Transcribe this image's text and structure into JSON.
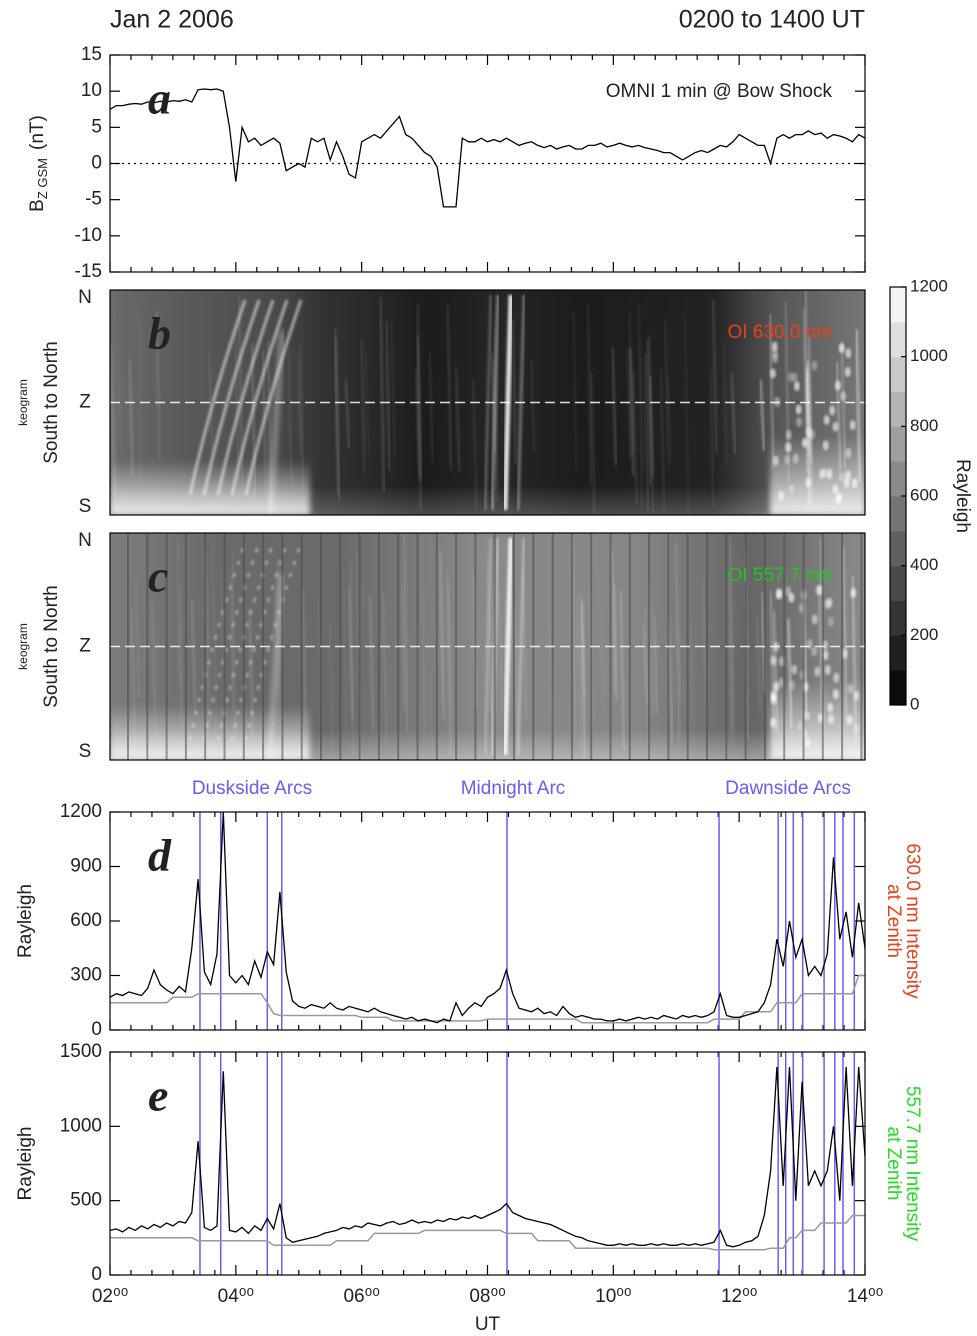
{
  "header": {
    "date": "Jan 2 2006",
    "range": "0200 to 1400 UT"
  },
  "chart_data": [
    {
      "type": "line",
      "panel_label": "a",
      "annotation": "OMNI 1 min @ Bow Shock",
      "ylabel": {
        "main": "B",
        "sub": "Z GSM",
        "unit": "(nT)"
      },
      "xlim": [
        2,
        14
      ],
      "xticks": [
        2,
        4,
        6,
        8,
        10,
        12,
        14
      ],
      "ylim": [
        -15,
        15
      ],
      "yticks": [
        -15,
        -10,
        -5,
        0,
        5,
        10,
        15
      ],
      "x": [
        2.0,
        2.1,
        2.2,
        2.3,
        2.4,
        2.5,
        2.6,
        2.7,
        2.8,
        2.9,
        3.0,
        3.1,
        3.2,
        3.3,
        3.4,
        3.5,
        3.6,
        3.7,
        3.8,
        3.9,
        4.0,
        4.1,
        4.2,
        4.3,
        4.4,
        4.5,
        4.6,
        4.7,
        4.8,
        4.9,
        5.0,
        5.1,
        5.2,
        5.3,
        5.4,
        5.5,
        5.6,
        5.7,
        5.8,
        5.9,
        6.0,
        6.1,
        6.2,
        6.3,
        6.4,
        6.5,
        6.6,
        6.7,
        6.8,
        6.9,
        7.0,
        7.1,
        7.2,
        7.3,
        7.4,
        7.5,
        7.6,
        7.7,
        7.8,
        7.9,
        8.0,
        8.1,
        8.2,
        8.3,
        8.4,
        8.5,
        8.6,
        8.7,
        8.8,
        8.9,
        9.0,
        9.1,
        9.2,
        9.3,
        9.4,
        9.5,
        9.6,
        9.7,
        9.8,
        9.9,
        10.0,
        10.1,
        10.2,
        10.3,
        10.4,
        10.5,
        10.6,
        10.7,
        10.8,
        10.9,
        11.0,
        11.1,
        11.2,
        11.3,
        11.4,
        11.5,
        11.6,
        11.7,
        11.8,
        11.9,
        12.0,
        12.1,
        12.2,
        12.3,
        12.4,
        12.5,
        12.6,
        12.7,
        12.8,
        12.9,
        13.0,
        13.1,
        13.2,
        13.3,
        13.4,
        13.5,
        13.6,
        13.7,
        13.8,
        13.9,
        14.0
      ],
      "series": [
        {
          "color": "#000000",
          "values": [
            7.5,
            8,
            8,
            8.2,
            8.3,
            8.2,
            8.5,
            8.4,
            8.6,
            8.5,
            8.7,
            8.6,
            8.8,
            8.5,
            10.2,
            10.3,
            10.2,
            10.3,
            10,
            5,
            -2.5,
            5,
            3,
            3.5,
            2.5,
            3,
            3.5,
            2.8,
            -1,
            -0.5,
            0,
            -0.5,
            3.5,
            3,
            3.5,
            0.5,
            3,
            1,
            -1.5,
            -2,
            3,
            3.5,
            4,
            3.5,
            4.5,
            5.5,
            6.5,
            4,
            3.5,
            2.5,
            1.5,
            1,
            -0.5,
            -6,
            -6,
            -6,
            3.5,
            3,
            3,
            3.5,
            3,
            3.3,
            3,
            3.5,
            3,
            2.5,
            2.8,
            3,
            2.5,
            2.2,
            2.5,
            2,
            2.3,
            2.5,
            2,
            2,
            2.5,
            2.5,
            2.8,
            2.3,
            2.5,
            2.8,
            2.5,
            2.3,
            2.5,
            2.2,
            2,
            1.8,
            1.5,
            1.5,
            1,
            0.5,
            1,
            1.5,
            1.8,
            1.5,
            2,
            2.5,
            2.3,
            3,
            4,
            3.5,
            3,
            2.5,
            2.5,
            0,
            3.5,
            4,
            3.5,
            4,
            4,
            4.5,
            4,
            4.2,
            3.5,
            4,
            3.8,
            3.5,
            3,
            4,
            3.5
          ]
        }
      ]
    },
    {
      "type": "keogram",
      "panel_label": "b",
      "title": "OI 630.0 nm",
      "title_color": "#e8401c",
      "ylabel": "South to North",
      "ylabel_note": "keogram",
      "ytick_labels": [
        "N",
        "Z",
        "S"
      ],
      "colorbar": {
        "label": "Rayleigh",
        "lim": [
          0,
          1200
        ],
        "ticks": [
          0,
          200,
          400,
          600,
          800,
          1000,
          1200
        ]
      }
    },
    {
      "type": "keogram",
      "panel_label": "c",
      "title": "OI 557.7 nm",
      "title_color": "#22c522",
      "ylabel": "South to North",
      "ylabel_note": "keogram",
      "ytick_labels": [
        "N",
        "Z",
        "S"
      ]
    },
    {
      "type": "line",
      "panel_label": "d",
      "ylabel": "Rayleigh",
      "side_label": [
        "630.0 nm Intensity",
        "at Zenith"
      ],
      "side_color": "#e8401c",
      "annotations": [
        "Duskside Arcs",
        "Midnight Arc",
        "Dawnside Arcs"
      ],
      "event_color": "#6a5cf0",
      "event_times": [
        3.43,
        3.76,
        4.5,
        4.73,
        8.31,
        11.68,
        12.62,
        12.74,
        12.86,
        13.01,
        13.35,
        13.52,
        13.65,
        13.83
      ],
      "xlim": [
        2,
        14
      ],
      "xticks": [
        2,
        4,
        6,
        8,
        10,
        12,
        14
      ],
      "ylim": [
        0,
        1200
      ],
      "yticks": [
        0,
        300,
        600,
        900,
        1200
      ],
      "x": [
        2.0,
        2.1,
        2.2,
        2.3,
        2.4,
        2.5,
        2.6,
        2.7,
        2.8,
        2.9,
        3.0,
        3.1,
        3.2,
        3.3,
        3.4,
        3.5,
        3.6,
        3.7,
        3.8,
        3.9,
        4.0,
        4.1,
        4.2,
        4.3,
        4.4,
        4.5,
        4.6,
        4.7,
        4.8,
        4.9,
        5.0,
        5.1,
        5.2,
        5.3,
        5.4,
        5.5,
        5.6,
        5.7,
        5.8,
        5.9,
        6.0,
        6.1,
        6.2,
        6.3,
        6.4,
        6.5,
        6.6,
        6.7,
        6.8,
        6.9,
        7.0,
        7.1,
        7.2,
        7.3,
        7.4,
        7.5,
        7.6,
        7.7,
        7.8,
        7.9,
        8.0,
        8.1,
        8.2,
        8.3,
        8.4,
        8.5,
        8.6,
        8.7,
        8.8,
        8.9,
        9.0,
        9.1,
        9.2,
        9.3,
        9.4,
        9.5,
        9.6,
        9.7,
        9.8,
        9.9,
        10.0,
        10.1,
        10.2,
        10.3,
        10.4,
        10.5,
        10.6,
        10.7,
        10.8,
        10.9,
        11.0,
        11.1,
        11.2,
        11.3,
        11.4,
        11.5,
        11.6,
        11.7,
        11.8,
        11.9,
        12.0,
        12.1,
        12.2,
        12.3,
        12.4,
        12.5,
        12.6,
        12.7,
        12.8,
        12.9,
        13.0,
        13.1,
        13.2,
        13.3,
        13.4,
        13.5,
        13.6,
        13.7,
        13.8,
        13.9,
        14.0
      ],
      "series": [
        {
          "color": "#000000",
          "values": [
            180,
            200,
            190,
            210,
            200,
            190,
            230,
            330,
            250,
            220,
            200,
            240,
            210,
            450,
            830,
            320,
            250,
            420,
            1200,
            300,
            260,
            300,
            250,
            380,
            290,
            430,
            360,
            760,
            320,
            160,
            130,
            120,
            140,
            130,
            120,
            150,
            120,
            110,
            130,
            120,
            110,
            100,
            120,
            100,
            90,
            80,
            70,
            60,
            70,
            50,
            60,
            50,
            40,
            60,
            50,
            150,
            80,
            120,
            150,
            130,
            180,
            200,
            230,
            330,
            200,
            120,
            110,
            100,
            120,
            90,
            100,
            80,
            130,
            90,
            70,
            80,
            70,
            60,
            60,
            50,
            50,
            60,
            50,
            60,
            70,
            60,
            70,
            60,
            80,
            70,
            60,
            80,
            70,
            80,
            70,
            80,
            100,
            200,
            80,
            70,
            70,
            80,
            90,
            100,
            150,
            250,
            500,
            350,
            600,
            400,
            500,
            300,
            350,
            300,
            420,
            950,
            500,
            650,
            400,
            700,
            450
          ]
        },
        {
          "color": "#999999",
          "values": [
            150,
            150,
            150,
            150,
            150,
            150,
            150,
            150,
            150,
            150,
            180,
            180,
            180,
            180,
            200,
            200,
            200,
            200,
            200,
            200,
            200,
            200,
            200,
            200,
            200,
            150,
            90,
            80,
            80,
            80,
            80,
            80,
            80,
            80,
            80,
            80,
            80,
            80,
            80,
            80,
            70,
            70,
            70,
            70,
            70,
            50,
            50,
            50,
            50,
            50,
            50,
            50,
            50,
            50,
            50,
            50,
            50,
            50,
            50,
            50,
            60,
            60,
            60,
            60,
            60,
            60,
            60,
            60,
            60,
            60,
            60,
            60,
            60,
            60,
            60,
            40,
            40,
            40,
            40,
            40,
            40,
            40,
            40,
            40,
            40,
            40,
            40,
            40,
            40,
            40,
            40,
            40,
            40,
            40,
            40,
            40,
            60,
            60,
            60,
            60,
            60,
            100,
            100,
            100,
            100,
            100,
            150,
            150,
            150,
            150,
            200,
            200,
            200,
            200,
            200,
            200,
            200,
            200,
            200,
            300,
            300
          ]
        }
      ]
    },
    {
      "type": "line",
      "panel_label": "e",
      "ylabel": "Rayleigh",
      "xlabel": "UT",
      "side_label": [
        "557.7 nm Intensity",
        "at Zenith"
      ],
      "side_color": "#22dd22",
      "event_color": "#6a5cf0",
      "event_times": [
        3.43,
        3.76,
        4.5,
        4.73,
        8.31,
        11.68,
        12.62,
        12.74,
        12.86,
        13.01,
        13.35,
        13.52,
        13.65,
        13.83
      ],
      "xlim": [
        2,
        14
      ],
      "xticks": [
        {
          "value": 2,
          "label": "02⁰⁰"
        },
        {
          "value": 4,
          "label": "04⁰⁰"
        },
        {
          "value": 6,
          "label": "06⁰⁰"
        },
        {
          "value": 8,
          "label": "08⁰⁰"
        },
        {
          "value": 10,
          "label": "10⁰⁰"
        },
        {
          "value": 12,
          "label": "12⁰⁰"
        },
        {
          "value": 14,
          "label": "14⁰⁰"
        }
      ],
      "ylim": [
        0,
        1500
      ],
      "yticks": [
        0,
        500,
        1000,
        1500
      ],
      "x": [
        2.0,
        2.1,
        2.2,
        2.3,
        2.4,
        2.5,
        2.6,
        2.7,
        2.8,
        2.9,
        3.0,
        3.1,
        3.2,
        3.3,
        3.4,
        3.5,
        3.6,
        3.7,
        3.8,
        3.9,
        4.0,
        4.1,
        4.2,
        4.3,
        4.4,
        4.5,
        4.6,
        4.7,
        4.8,
        4.9,
        5.0,
        5.1,
        5.2,
        5.3,
        5.4,
        5.5,
        5.6,
        5.7,
        5.8,
        5.9,
        6.0,
        6.1,
        6.2,
        6.3,
        6.4,
        6.5,
        6.6,
        6.7,
        6.8,
        6.9,
        7.0,
        7.1,
        7.2,
        7.3,
        7.4,
        7.5,
        7.6,
        7.7,
        7.8,
        7.9,
        8.0,
        8.1,
        8.2,
        8.3,
        8.4,
        8.5,
        8.6,
        8.7,
        8.8,
        8.9,
        9.0,
        9.1,
        9.2,
        9.3,
        9.4,
        9.5,
        9.6,
        9.7,
        9.8,
        9.9,
        10.0,
        10.1,
        10.2,
        10.3,
        10.4,
        10.5,
        10.6,
        10.7,
        10.8,
        10.9,
        11.0,
        11.1,
        11.2,
        11.3,
        11.4,
        11.5,
        11.6,
        11.7,
        11.8,
        11.9,
        12.0,
        12.1,
        12.2,
        12.3,
        12.4,
        12.5,
        12.6,
        12.7,
        12.8,
        12.9,
        13.0,
        13.1,
        13.2,
        13.3,
        13.4,
        13.5,
        13.6,
        13.7,
        13.8,
        13.9,
        14.0
      ],
      "series": [
        {
          "color": "#000000",
          "values": [
            300,
            310,
            290,
            320,
            300,
            330,
            310,
            340,
            320,
            350,
            330,
            360,
            350,
            420,
            900,
            320,
            300,
            330,
            1370,
            300,
            290,
            320,
            280,
            330,
            300,
            380,
            310,
            480,
            250,
            220,
            230,
            240,
            250,
            260,
            280,
            290,
            300,
            320,
            310,
            330,
            320,
            350,
            340,
            330,
            350,
            360,
            340,
            350,
            370,
            350,
            360,
            350,
            370,
            360,
            380,
            370,
            390,
            380,
            400,
            380,
            400,
            420,
            440,
            480,
            420,
            400,
            380,
            370,
            360,
            350,
            340,
            320,
            300,
            280,
            260,
            250,
            230,
            220,
            210,
            200,
            200,
            210,
            200,
            210,
            200,
            200,
            210,
            200,
            210,
            200,
            200,
            210,
            200,
            210,
            200,
            210,
            220,
            300,
            200,
            190,
            200,
            220,
            230,
            260,
            400,
            700,
            1400,
            600,
            1400,
            500,
            1300,
            600,
            700,
            600,
            700,
            1000,
            500,
            1400,
            600,
            1400,
            800
          ]
        },
        {
          "color": "#999999",
          "values": [
            250,
            250,
            250,
            250,
            250,
            250,
            250,
            250,
            250,
            250,
            250,
            250,
            250,
            250,
            230,
            230,
            230,
            230,
            230,
            230,
            230,
            230,
            230,
            230,
            230,
            230,
            200,
            200,
            200,
            200,
            200,
            200,
            200,
            200,
            200,
            200,
            230,
            230,
            230,
            230,
            230,
            230,
            280,
            280,
            280,
            280,
            280,
            280,
            280,
            280,
            300,
            300,
            300,
            300,
            300,
            300,
            300,
            300,
            300,
            300,
            300,
            300,
            300,
            280,
            280,
            280,
            280,
            280,
            230,
            230,
            230,
            230,
            230,
            230,
            180,
            180,
            180,
            180,
            180,
            180,
            180,
            180,
            180,
            180,
            180,
            180,
            180,
            180,
            180,
            180,
            180,
            180,
            180,
            180,
            180,
            180,
            170,
            170,
            170,
            170,
            170,
            170,
            170,
            170,
            170,
            180,
            180,
            180,
            250,
            250,
            300,
            300,
            300,
            350,
            350,
            350,
            350,
            350,
            400,
            400,
            400
          ]
        }
      ]
    }
  ]
}
